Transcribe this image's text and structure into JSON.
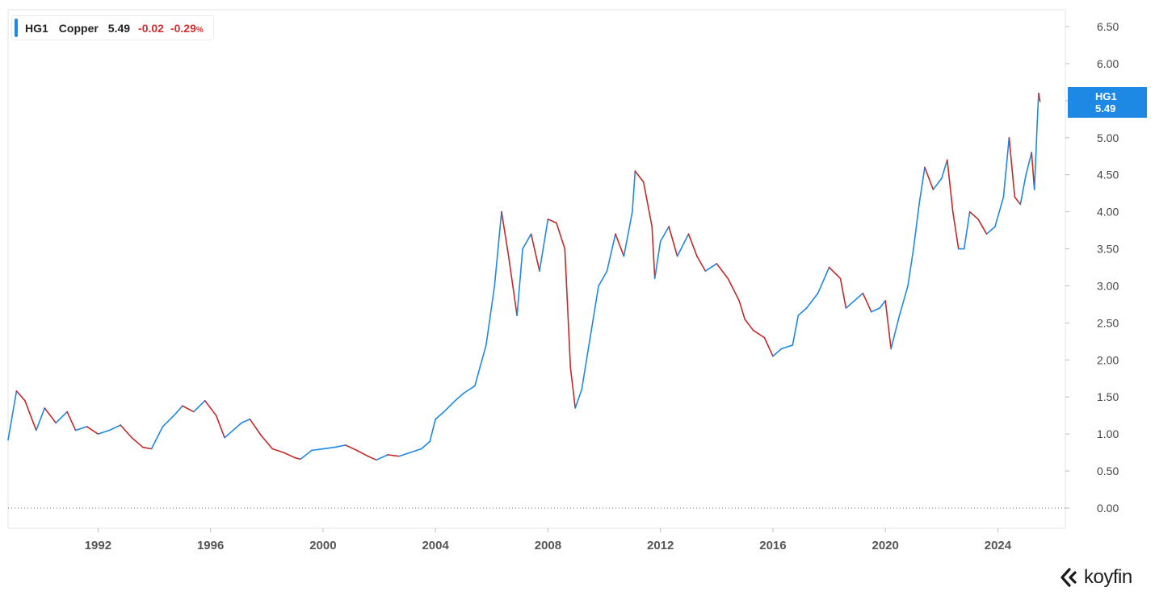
{
  "legend": {
    "ticker": "HG1",
    "name": "Copper",
    "last": "5.49",
    "change": "-0.02",
    "change_pct": "-0.29",
    "pct_symbol": "%",
    "accent_color": "#1e88e5",
    "negative_color": "#d32f2f"
  },
  "price_tag": {
    "ticker": "HG1",
    "value": "5.49"
  },
  "brand": {
    "name": "koyfin",
    "icon": "koyfin-chevron-logo-icon"
  },
  "chart_data": {
    "type": "line",
    "series": [
      {
        "name": "HG1",
        "up_color": "#1e88e5",
        "down_color": "#c62828",
        "x": [
          1988.8,
          1989.1,
          1989.4,
          1989.8,
          1990.1,
          1990.5,
          1990.9,
          1991.2,
          1991.6,
          1992.0,
          1992.4,
          1992.8,
          1993.2,
          1993.6,
          1993.9,
          1994.3,
          1994.7,
          1995.0,
          1995.4,
          1995.8,
          1996.2,
          1996.5,
          1996.8,
          1997.1,
          1997.4,
          1997.8,
          1998.2,
          1998.6,
          1999.0,
          1999.2,
          1999.6,
          2000.0,
          2000.4,
          2000.8,
          2001.2,
          2001.6,
          2001.9,
          2002.3,
          2002.7,
          2003.1,
          2003.5,
          2003.8,
          2004.0,
          2004.3,
          2004.7,
          2005.0,
          2005.4,
          2005.8,
          2006.1,
          2006.35,
          2006.6,
          2006.9,
          2007.1,
          2007.4,
          2007.7,
          2008.0,
          2008.3,
          2008.6,
          2008.8,
          2008.97,
          2009.2,
          2009.5,
          2009.8,
          2010.1,
          2010.4,
          2010.7,
          2011.0,
          2011.1,
          2011.4,
          2011.7,
          2011.8,
          2012.0,
          2012.3,
          2012.6,
          2013.0,
          2013.3,
          2013.6,
          2014.0,
          2014.4,
          2014.8,
          2015.0,
          2015.3,
          2015.7,
          2016.0,
          2016.3,
          2016.7,
          2016.9,
          2017.2,
          2017.6,
          2018.0,
          2018.4,
          2018.6,
          2018.9,
          2019.2,
          2019.5,
          2019.8,
          2020.0,
          2020.2,
          2020.5,
          2020.8,
          2021.0,
          2021.2,
          2021.4,
          2021.7,
          2022.0,
          2022.2,
          2022.4,
          2022.6,
          2022.8,
          2023.0,
          2023.3,
          2023.6,
          2023.9,
          2024.2,
          2024.4,
          2024.6,
          2024.8,
          2025.0,
          2025.2,
          2025.3,
          2025.4,
          2025.45,
          2025.5
        ],
        "y": [
          0.92,
          1.58,
          1.45,
          1.05,
          1.35,
          1.15,
          1.3,
          1.05,
          1.1,
          1.0,
          1.05,
          1.12,
          0.95,
          0.82,
          0.8,
          1.1,
          1.25,
          1.38,
          1.3,
          1.45,
          1.25,
          0.95,
          1.05,
          1.15,
          1.2,
          0.98,
          0.8,
          0.75,
          0.68,
          0.66,
          0.78,
          0.8,
          0.82,
          0.85,
          0.78,
          0.7,
          0.65,
          0.72,
          0.7,
          0.75,
          0.8,
          0.9,
          1.2,
          1.3,
          1.45,
          1.55,
          1.65,
          2.2,
          3.0,
          4.0,
          3.4,
          2.6,
          3.5,
          3.7,
          3.2,
          3.9,
          3.85,
          3.5,
          1.9,
          1.35,
          1.6,
          2.3,
          3.0,
          3.2,
          3.7,
          3.4,
          4.0,
          4.55,
          4.4,
          3.8,
          3.1,
          3.6,
          3.8,
          3.4,
          3.7,
          3.4,
          3.2,
          3.3,
          3.1,
          2.8,
          2.55,
          2.4,
          2.3,
          2.05,
          2.15,
          2.2,
          2.6,
          2.7,
          2.9,
          3.25,
          3.1,
          2.7,
          2.8,
          2.9,
          2.65,
          2.7,
          2.8,
          2.15,
          2.6,
          3.0,
          3.5,
          4.1,
          4.6,
          4.3,
          4.45,
          4.7,
          4.0,
          3.5,
          3.5,
          4.0,
          3.9,
          3.7,
          3.8,
          4.2,
          5.0,
          4.2,
          4.1,
          4.5,
          4.8,
          4.3,
          5.2,
          5.6,
          5.49
        ],
        "last_value": 5.49
      }
    ],
    "x_ticks": [
      "1992",
      "1996",
      "2000",
      "2004",
      "2008",
      "2012",
      "2016",
      "2020",
      "2024"
    ],
    "y_ticks": [
      "0.00",
      "0.50",
      "1.00",
      "1.50",
      "2.00",
      "2.50",
      "3.00",
      "3.50",
      "4.00",
      "4.50",
      "5.00",
      "5.50",
      "6.00",
      "6.50"
    ],
    "xlim": [
      1988.8,
      2026.4
    ],
    "ylim": [
      0,
      6.5
    ],
    "zero_line": "dotted",
    "y_axis_position": "right",
    "grid": false,
    "legend_position": "top-left"
  }
}
